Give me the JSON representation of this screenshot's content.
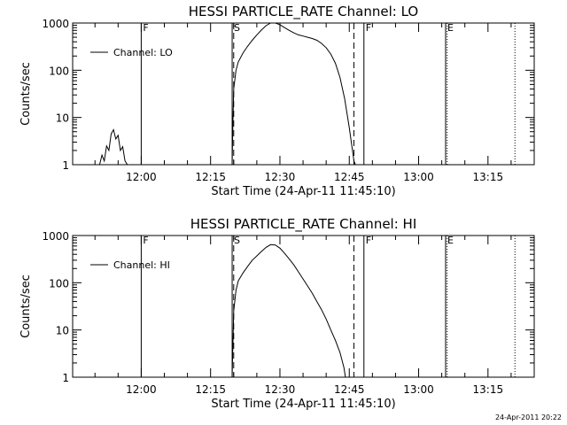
{
  "footer": {
    "timestamp": "24-Apr-2011 20:22"
  },
  "chart_data": [
    {
      "type": "line",
      "title": "HESSI PARTICLE_RATE Channel: LO",
      "xlabel": "Start Time (24-Apr-11 11:45:10)",
      "ylabel": "Counts/sec",
      "yscale": "log",
      "ylim": [
        1,
        1000
      ],
      "xlim": [
        "11:45:10",
        "13:25:00"
      ],
      "xticks": [
        "12:00",
        "12:15",
        "12:30",
        "12:45",
        "13:00",
        "13:15"
      ],
      "yticks": [
        "1",
        "10",
        "100",
        "1000"
      ],
      "legend": {
        "placement": "top-left",
        "label": "Channel: LO"
      },
      "series": [
        {
          "name": "Channel: LO",
          "points": [
            [
              "11:51:00",
              1
            ],
            [
              "11:51:30",
              1.6
            ],
            [
              "11:52:00",
              1.2
            ],
            [
              "11:52:30",
              2.5
            ],
            [
              "11:53:00",
              2.0
            ],
            [
              "11:53:30",
              4.5
            ],
            [
              "11:54:00",
              5.5
            ],
            [
              "11:54:30",
              3.5
            ],
            [
              "11:55:00",
              4.2
            ],
            [
              "11:55:30",
              2.0
            ],
            [
              "11:56:00",
              2.4
            ],
            [
              "11:56:30",
              1.2
            ],
            [
              "11:57:00",
              1
            ]
          ]
        },
        {
          "name": "Channel: LO",
          "points": [
            [
              "12:19:40",
              1
            ],
            [
              "12:19:50",
              8
            ],
            [
              "12:20:00",
              40
            ],
            [
              "12:20:30",
              100
            ],
            [
              "12:21:00",
              150
            ],
            [
              "12:22:00",
              230
            ],
            [
              "12:23:00",
              320
            ],
            [
              "12:24:00",
              430
            ],
            [
              "12:25:00",
              560
            ],
            [
              "12:26:00",
              710
            ],
            [
              "12:27:00",
              880
            ],
            [
              "12:28:00",
              1000
            ],
            [
              "12:29:00",
              1000
            ],
            [
              "12:30:00",
              920
            ],
            [
              "12:31:00",
              800
            ],
            [
              "12:32:00",
              700
            ],
            [
              "12:33:00",
              620
            ],
            [
              "12:34:00",
              560
            ],
            [
              "12:35:00",
              530
            ],
            [
              "12:36:00",
              500
            ],
            [
              "12:37:00",
              470
            ],
            [
              "12:38:00",
              430
            ],
            [
              "12:39:00",
              370
            ],
            [
              "12:40:00",
              300
            ],
            [
              "12:41:00",
              220
            ],
            [
              "12:42:00",
              140
            ],
            [
              "12:43:00",
              70
            ],
            [
              "12:44:00",
              25
            ],
            [
              "12:45:00",
              6
            ],
            [
              "12:46:00",
              1.2
            ],
            [
              "12:46:20",
              1
            ]
          ]
        }
      ],
      "markers": [
        {
          "label": "F",
          "time": "12:00:00",
          "style": "solid"
        },
        {
          "label": "S",
          "time": "12:19:40",
          "style": "solid"
        },
        {
          "label": "",
          "time": "12:20:00",
          "style": "dashed"
        },
        {
          "label": "",
          "time": "12:46:00",
          "style": "dashed"
        },
        {
          "label": "F",
          "time": "12:48:10",
          "style": "solid"
        },
        {
          "label": "E",
          "time": "13:05:50",
          "style": "solid"
        },
        {
          "label": "",
          "time": "13:06:10",
          "style": "dotted"
        },
        {
          "label": "",
          "time": "13:20:50",
          "style": "dotted"
        }
      ]
    },
    {
      "type": "line",
      "title": "HESSI PARTICLE_RATE Channel: HI",
      "xlabel": "Start Time (24-Apr-11 11:45:10)",
      "ylabel": "Counts/sec",
      "yscale": "log",
      "ylim": [
        1,
        1000
      ],
      "xlim": [
        "11:45:10",
        "13:25:00"
      ],
      "xticks": [
        "12:00",
        "12:15",
        "12:30",
        "12:45",
        "13:00",
        "13:15"
      ],
      "yticks": [
        "1",
        "10",
        "100",
        "1000"
      ],
      "legend": {
        "placement": "top-left",
        "label": "Channel: HI"
      },
      "series": [
        {
          "name": "Channel: HI",
          "points": [
            [
              "12:19:40",
              1
            ],
            [
              "12:19:50",
              5
            ],
            [
              "12:20:00",
              25
            ],
            [
              "12:20:30",
              70
            ],
            [
              "12:21:00",
              110
            ],
            [
              "12:22:00",
              160
            ],
            [
              "12:23:00",
              220
            ],
            [
              "12:24:00",
              300
            ],
            [
              "12:25:00",
              370
            ],
            [
              "12:26:00",
              460
            ],
            [
              "12:27:00",
              560
            ],
            [
              "12:28:00",
              640
            ],
            [
              "12:29:00",
              630
            ],
            [
              "12:30:00",
              540
            ],
            [
              "12:31:00",
              420
            ],
            [
              "12:32:00",
              320
            ],
            [
              "12:33:00",
              240
            ],
            [
              "12:34:00",
              170
            ],
            [
              "12:35:00",
              120
            ],
            [
              "12:36:00",
              85
            ],
            [
              "12:37:00",
              60
            ],
            [
              "12:38:00",
              40
            ],
            [
              "12:39:00",
              27
            ],
            [
              "12:40:00",
              17
            ],
            [
              "12:41:00",
              10
            ],
            [
              "12:42:00",
              6
            ],
            [
              "12:43:00",
              3.3
            ],
            [
              "12:43:50",
              1.6
            ],
            [
              "12:44:10",
              1
            ]
          ]
        }
      ],
      "markers": [
        {
          "label": "F",
          "time": "12:00:00",
          "style": "solid"
        },
        {
          "label": "S",
          "time": "12:19:40",
          "style": "solid"
        },
        {
          "label": "",
          "time": "12:20:00",
          "style": "dashed"
        },
        {
          "label": "",
          "time": "12:46:00",
          "style": "dashed"
        },
        {
          "label": "F",
          "time": "12:48:10",
          "style": "solid"
        },
        {
          "label": "E",
          "time": "13:05:50",
          "style": "solid"
        },
        {
          "label": "",
          "time": "13:06:10",
          "style": "dotted"
        },
        {
          "label": "",
          "time": "13:20:50",
          "style": "dotted"
        }
      ]
    }
  ]
}
